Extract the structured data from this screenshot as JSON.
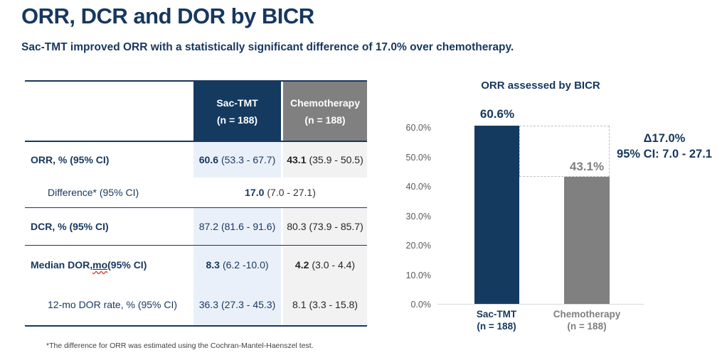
{
  "page": {
    "title": "ORR, DCR and DOR by BICR",
    "subtitle": "Sac-TMT improved ORR with a statistically significant difference of 17.0% over chemotherapy.",
    "footnote": "*The difference for ORR was estimated using the Cochran-Mantel-Haenszel test."
  },
  "colors": {
    "navy_text": "#17375E",
    "navy_fill": "#143A60",
    "gray_fill": "#808080",
    "sac_column_tint": "#EAF0F9",
    "chemo_column_tint": "#F2F2F3",
    "axis_line": "#D9D9D9",
    "bracket_dash": "#BFBFBF"
  },
  "table": {
    "col_headers": [
      {
        "name": "Sac-TMT",
        "n": "(n = 188)"
      },
      {
        "name": "Chemotherapy",
        "n": "(n = 188)"
      }
    ],
    "rows": [
      {
        "label": "ORR, % (95% CI)",
        "sac_num": "60.6",
        "sac_ci": "(53.3 - 67.7)",
        "chemo_num": "43.1",
        "chemo_ci": "(35.9 - 50.5)"
      },
      {
        "label": "Difference* (95% CI)",
        "num": "17.0",
        "ci": "(7.0 - 27.1)"
      },
      {
        "label": "DCR, % (95% CI)",
        "sac_num": "87.2",
        "sac_ci": "(81.6 - 91.6)",
        "chemo_num": "80.3",
        "chemo_ci": "(73.9 - 85.7)"
      },
      {
        "label_pre": "Median DOR, ",
        "label_mo": "mo",
        "label_post": " (95% CI)",
        "sac_num": "8.3",
        "sac_ci": "(6.2 -10.0)",
        "chemo_num": "4.2",
        "chemo_ci": "(3.0 - 4.4)"
      },
      {
        "label": "12-mo DOR rate, % (95% CI)",
        "sac_num": "36.3",
        "sac_ci": "(27.3 - 45.3)",
        "chemo_num": "8.1",
        "chemo_ci": "(3.3 - 15.8)"
      }
    ]
  },
  "chart_data": {
    "type": "bar",
    "title": "ORR assessed by BICR",
    "categories": [
      "Sac-TMT (n = 188)",
      "Chemotherapy (n = 188)"
    ],
    "values": [
      60.6,
      43.1
    ],
    "bar_labels": [
      "60.6%",
      "43.1%"
    ],
    "bar_colors": [
      "#143A60",
      "#808080"
    ],
    "x_labels": [
      {
        "name": "Sac-TMT",
        "n": "(n = 188)"
      },
      {
        "name": "Chemotherapy",
        "n": "(n = 188)"
      }
    ],
    "xlabel": "",
    "ylabel": "",
    "ylim": [
      0,
      62
    ],
    "ytick_step": 10,
    "yticks": [
      "0.0%",
      "10.0%",
      "20.0%",
      "30.0%",
      "40.0%",
      "50.0%",
      "60.0%"
    ],
    "grid": false,
    "legend": "none",
    "annotation": {
      "delta": "Δ17.0%",
      "ci": "95% CI: 7.0 - 27.1"
    }
  }
}
